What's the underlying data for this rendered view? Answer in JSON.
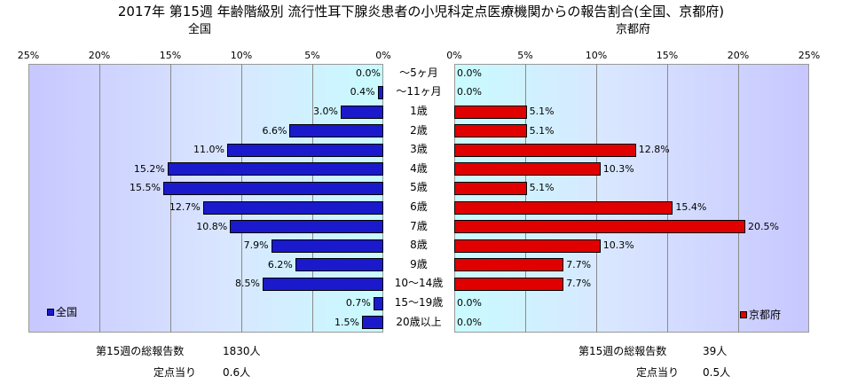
{
  "title": "2017年 第15週 年齢階級別 流行性耳下腺炎患者の小児科定点医療機関からの報告割合(全国、京都府)",
  "chart_data": [
    {
      "type": "bar",
      "orientation": "horizontal",
      "title": "全国",
      "categories": [
        "～5ヶ月",
        "～11ヶ月",
        "1歳",
        "2歳",
        "3歳",
        "4歳",
        "5歳",
        "6歳",
        "7歳",
        "8歳",
        "9歳",
        "10～14歳",
        "15～19歳",
        "20歳以上"
      ],
      "series": [
        {
          "name": "全国",
          "values": [
            0.0,
            0.4,
            3.0,
            6.6,
            11.0,
            15.2,
            15.5,
            12.7,
            10.8,
            7.9,
            6.2,
            8.5,
            0.7,
            1.5
          ]
        }
      ],
      "value_labels": [
        "0.0%",
        "0.4%",
        "3.0%",
        "6.6%",
        "11.0%",
        "15.2%",
        "15.5%",
        "12.7%",
        "10.8%",
        "7.9%",
        "6.2%",
        "8.5%",
        "0.7%",
        "1.5%"
      ],
      "xlim": [
        25,
        0
      ],
      "xticks": [
        "25%",
        "20%",
        "15%",
        "10%",
        "5%",
        "0%"
      ],
      "legend": "bottom-left",
      "color": "#1a1acc",
      "grid": true
    },
    {
      "type": "bar",
      "orientation": "horizontal",
      "title": "京都府",
      "categories": [
        "～5ヶ月",
        "～11ヶ月",
        "1歳",
        "2歳",
        "3歳",
        "4歳",
        "5歳",
        "6歳",
        "7歳",
        "8歳",
        "9歳",
        "10～14歳",
        "15～19歳",
        "20歳以上"
      ],
      "series": [
        {
          "name": "京都府",
          "values": [
            0.0,
            0.0,
            5.1,
            5.1,
            12.8,
            10.3,
            5.1,
            15.4,
            20.5,
            10.3,
            7.7,
            7.7,
            0.0,
            0.0
          ]
        }
      ],
      "value_labels": [
        "0.0%",
        "0.0%",
        "5.1%",
        "5.1%",
        "12.8%",
        "10.3%",
        "5.1%",
        "15.4%",
        "20.5%",
        "10.3%",
        "7.7%",
        "7.7%",
        "0.0%",
        "0.0%"
      ],
      "xlim": [
        0,
        25
      ],
      "xticks": [
        "0%",
        "5%",
        "10%",
        "15%",
        "20%",
        "25%"
      ],
      "legend": "bottom-right",
      "color": "#e00000",
      "grid": true
    }
  ],
  "footer": {
    "left": {
      "total_label": "第15週の総報告数",
      "total_value": "1830人",
      "per_label": "定点当り",
      "per_value": "0.6人"
    },
    "right": {
      "total_label": "第15週の総報告数",
      "total_value": "39人",
      "per_label": "定点当り",
      "per_value": "0.5人"
    }
  }
}
